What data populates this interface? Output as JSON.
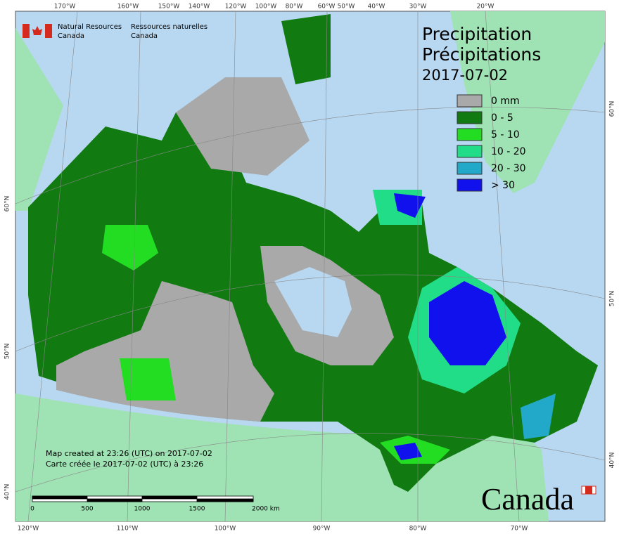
{
  "header": {
    "agency_en": [
      "Natural Resources",
      "Canada"
    ],
    "agency_fr": [
      "Ressources naturelles",
      "Canada"
    ]
  },
  "title": {
    "line1": "Precipitation",
    "line2": "Précipitations",
    "date": "2017-07-02"
  },
  "legend": {
    "items": [
      {
        "label": "0 mm",
        "color": "#a9a9a9"
      },
      {
        "label": "0 - 5",
        "color": "#117a11"
      },
      {
        "label": "5 - 10",
        "color": "#22dd22"
      },
      {
        "label": "10 - 20",
        "color": "#22dd88"
      },
      {
        "label": "20 - 30",
        "color": "#22a8c8"
      },
      {
        "label": "> 30",
        "color": "#1111ee"
      }
    ]
  },
  "graticule": {
    "top": [
      "170°W",
      "160°W",
      "150°W",
      "140°W",
      "120°W",
      "100°W",
      "80°W",
      "60°W",
      "50°W",
      "40°W",
      "30°W",
      "20°W"
    ],
    "bottom": [
      "120°W",
      "110°W",
      "100°W",
      "90°W",
      "80°W",
      "70°W"
    ],
    "left": [
      "60°N",
      "50°N",
      "40°N"
    ],
    "right": [
      "60°N",
      "50°N",
      "40°N"
    ]
  },
  "credits": [
    "Map created at 23:26 (UTC) on 2017-07-02",
    "Carte créée le 2017-07-02 (UTC) à 23:26"
  ],
  "scale_bar": {
    "labels": [
      "0",
      "500",
      "1000",
      "1500",
      "2000 km"
    ]
  },
  "wordmark": "Canada"
}
